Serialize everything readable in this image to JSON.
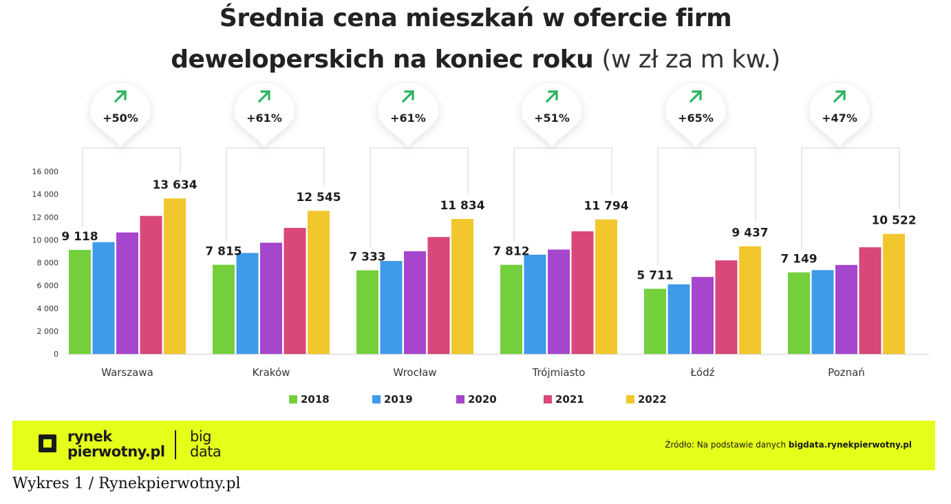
{
  "title": {
    "line1": "Średnia cena mieszkań w ofercie firm",
    "line2": "deweloperskich na koniec roku",
    "unit": "(w zł za m kw.)"
  },
  "chart_data": {
    "type": "bar",
    "categories": [
      "Warszawa",
      "Kraków",
      "Wrocław",
      "Trójmiasto",
      "Łódź",
      "Poznań"
    ],
    "series": [
      {
        "name": "2018",
        "color": "#74cf3d",
        "values": [
          9118,
          7815,
          7333,
          7812,
          5711,
          7149
        ]
      },
      {
        "name": "2019",
        "color": "#3d9be9",
        "values": [
          9800,
          8850,
          8150,
          8700,
          6100,
          7350
        ]
      },
      {
        "name": "2020",
        "color": "#a646cc",
        "values": [
          10650,
          9750,
          9000,
          9150,
          6750,
          7800
        ]
      },
      {
        "name": "2021",
        "color": "#d9477b",
        "values": [
          12100,
          11050,
          10250,
          10750,
          8200,
          9350
        ]
      },
      {
        "name": "2022",
        "color": "#f2c72e",
        "values": [
          13634,
          12545,
          11834,
          11794,
          9437,
          10522
        ]
      }
    ],
    "data_labels": {
      "first": [
        "9 118",
        "7 815",
        "7 333",
        "7 812",
        "5 711",
        "7 149"
      ],
      "last": [
        "13 634",
        "12 545",
        "11 834",
        "11 794",
        "9 437",
        "10 522"
      ]
    },
    "growth": [
      "+50%",
      "+61%",
      "+61%",
      "+51%",
      "+65%",
      "+47%"
    ],
    "growth_icon": "arrow-up-right-icon",
    "growth_color": "#2db35e",
    "ylim": [
      0,
      16000
    ],
    "yticks": [
      0,
      2000,
      4000,
      6000,
      8000,
      10000,
      12000,
      14000,
      16000
    ],
    "ytick_labels": [
      "0",
      "2 000",
      "4 000",
      "6 000",
      "8 000",
      "10 000",
      "12 000",
      "14 000",
      "16 000"
    ],
    "grid": false,
    "legend": "bottom"
  },
  "footer": {
    "band_color": "#e6ff1a",
    "logo_line1": "rynek",
    "logo_line2": "pierwotny.pl",
    "logo_line3": "big",
    "logo_line4": "data",
    "source_prefix": "Źródło: Na podstawie danych ",
    "source_site": "bigdata.rynekpierwotny.pl"
  },
  "caption": "Wykres 1 / Rynekpierwotny.pl"
}
